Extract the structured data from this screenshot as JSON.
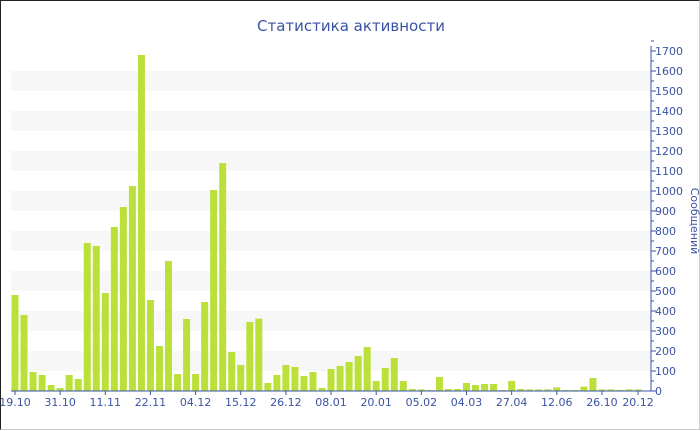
{
  "chart_data": {
    "type": "bar",
    "title": "Статистика активности",
    "xlabel": "",
    "ylabel": "Сообщений",
    "ylim": [
      0,
      1700
    ],
    "y_ticks": [
      0,
      100,
      200,
      300,
      400,
      500,
      600,
      700,
      800,
      900,
      1000,
      1100,
      1200,
      1300,
      1400,
      1500,
      1600,
      1700
    ],
    "y_axis_position": "right",
    "grid": "alternating horizontal bands",
    "x_tick_labels": [
      "19.10",
      "31.10",
      "11.11",
      "22.11",
      "04.12",
      "15.12",
      "26.12",
      "08.01",
      "20.01",
      "05.02",
      "04.03",
      "27.04",
      "12.06",
      "26.10",
      "20.12"
    ],
    "x_tick_bar_index": [
      0,
      5,
      10,
      15,
      20,
      25,
      30,
      35,
      40,
      45,
      50,
      55,
      60,
      65,
      69
    ],
    "values": [
      480,
      380,
      95,
      80,
      30,
      15,
      80,
      60,
      740,
      725,
      490,
      820,
      920,
      1025,
      1680,
      455,
      225,
      650,
      85,
      360,
      85,
      445,
      1005,
      1140,
      195,
      130,
      345,
      362,
      40,
      80,
      130,
      120,
      75,
      95,
      15,
      110,
      125,
      145,
      175,
      220,
      50,
      115,
      165,
      50,
      10,
      8,
      5,
      70,
      10,
      10,
      40,
      30,
      35,
      35,
      5,
      50,
      10,
      8,
      8,
      8,
      18,
      5,
      5,
      22,
      65,
      8,
      8,
      5,
      8,
      8
    ],
    "colors": {
      "bar": "#bbe03a",
      "axis": "#3a53a4",
      "band": "#f7f7f7"
    }
  }
}
